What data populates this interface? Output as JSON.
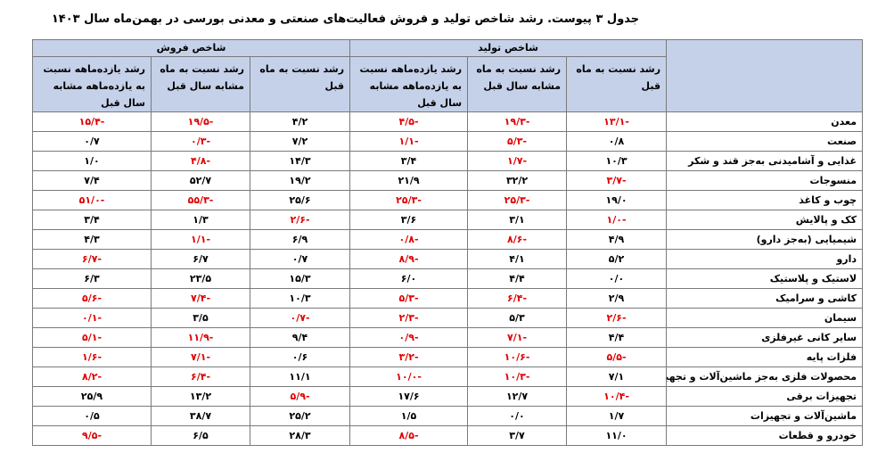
{
  "caption": "جدول ۳ پیوست. رشد شاخص تولید و فروش فعالیت‌های صنعتی و معدنی بورسی در بهمن‌ماه سال ۱۴۰۳",
  "groups": {
    "production": "شاخص تولید",
    "sales": "شاخص فروش"
  },
  "headers": {
    "prod_month": "رشد نسبت به ماه قبل",
    "prod_same_month": "رشد نسبت به ماه مشابه سال قبل",
    "prod_11m": "رشد یازده‌ماهه نسبت به یازده‌ماهه مشابه سال قبل",
    "sales_month": "رشد نسبت به ماه قبل",
    "sales_same_month": "رشد نسبت به ماه مشابه سال قبل",
    "sales_11m": "رشد یازده‌ماهه نسبت به یازده‌ماهه مشابه سال قبل"
  },
  "colors": {
    "header_bg": "#c5d1e9",
    "negative": "#e00000",
    "positive": "#000000"
  },
  "rows": [
    {
      "name": "معدن",
      "values": [
        "-۱۳/۱",
        "-۱۹/۳",
        "-۴/۵",
        "۴/۲",
        "-۱۹/۵",
        "-۱۵/۴"
      ]
    },
    {
      "name": "صنعت",
      "values": [
        "۰/۸",
        "-۵/۳",
        "-۱/۱",
        "۷/۲",
        "-۰/۳",
        "۰/۷"
      ]
    },
    {
      "name": "غذایی و آشامیدنی به‌جز قند و شکر",
      "values": [
        "۱۰/۳",
        "-۱/۷",
        "۳/۴",
        "۱۴/۳",
        "-۴/۸",
        "۱/۰"
      ]
    },
    {
      "name": "منسوجات",
      "values": [
        "-۳/۷",
        "۳۲/۲",
        "۲۱/۹",
        "۱۹/۲",
        "۵۲/۷",
        "۷/۴"
      ]
    },
    {
      "name": "چوب و کاغذ",
      "values": [
        "۱۹/۰",
        "-۲۵/۳",
        "-۲۵/۳",
        "۲۵/۶",
        "-۵۵/۳",
        "-۵۱/۰"
      ]
    },
    {
      "name": "کک و پالایش",
      "values": [
        "-۱/۰",
        "۳/۱",
        "۳/۶",
        "-۲/۶",
        "۱/۳",
        "۳/۴"
      ]
    },
    {
      "name": "شیمیایی (به‌جز دارو)",
      "values": [
        "۴/۹",
        "-۸/۶",
        "-۰/۸",
        "۶/۹",
        "-۱/۱",
        "۴/۳"
      ]
    },
    {
      "name": "دارو",
      "values": [
        "۵/۲",
        "۴/۱",
        "-۸/۹",
        "۰/۷",
        "۶/۷",
        "-۶/۷"
      ]
    },
    {
      "name": "لاستیک و پلاستیک",
      "values": [
        "۰/۰",
        "۴/۴",
        "۶/۰",
        "۱۵/۳",
        "۲۳/۵",
        "۶/۳"
      ]
    },
    {
      "name": "کاشی و سرامیک",
      "values": [
        "۲/۹",
        "-۶/۴",
        "-۵/۳",
        "۱۰/۳",
        "-۷/۴",
        "-۵/۶"
      ]
    },
    {
      "name": "سیمان",
      "values": [
        "-۲/۶",
        "۵/۳",
        "-۲/۳",
        "-۰/۷",
        "۳/۵",
        "-۰/۱"
      ]
    },
    {
      "name": "سایر کانی غیرفلزی",
      "values": [
        "۴/۴",
        "-۷/۱",
        "-۰/۹",
        "۹/۴",
        "-۱۱/۹",
        "-۵/۱"
      ]
    },
    {
      "name": "فلزات پایه",
      "values": [
        "-۵/۵",
        "-۱۰/۶",
        "-۳/۲",
        "۰/۶",
        "-۷/۱",
        "-۱/۶"
      ]
    },
    {
      "name": "محصولات فلزی به‌جز ماشین‌آلات و تجهیزات",
      "values": [
        "۷/۱",
        "-۱۰/۳",
        "-۱۰/۰",
        "۱۱/۱",
        "-۶/۴",
        "-۸/۲"
      ]
    },
    {
      "name": "تجهیزات برقی",
      "values": [
        "-۱۰/۴",
        "۱۲/۷",
        "۱۷/۶",
        "-۵/۹",
        "۱۳/۲",
        "۲۵/۹"
      ]
    },
    {
      "name": "ماشین‌آلات و تجهیزات",
      "values": [
        "۱/۷",
        "۰/۰",
        "۱/۵",
        "۲۵/۲",
        "۳۸/۷",
        "۰/۵"
      ]
    },
    {
      "name": "خودرو و قطعات",
      "values": [
        "۱۱/۰",
        "۳/۷",
        "-۸/۵",
        "۲۸/۳",
        "۶/۵",
        "-۹/۵"
      ]
    }
  ]
}
